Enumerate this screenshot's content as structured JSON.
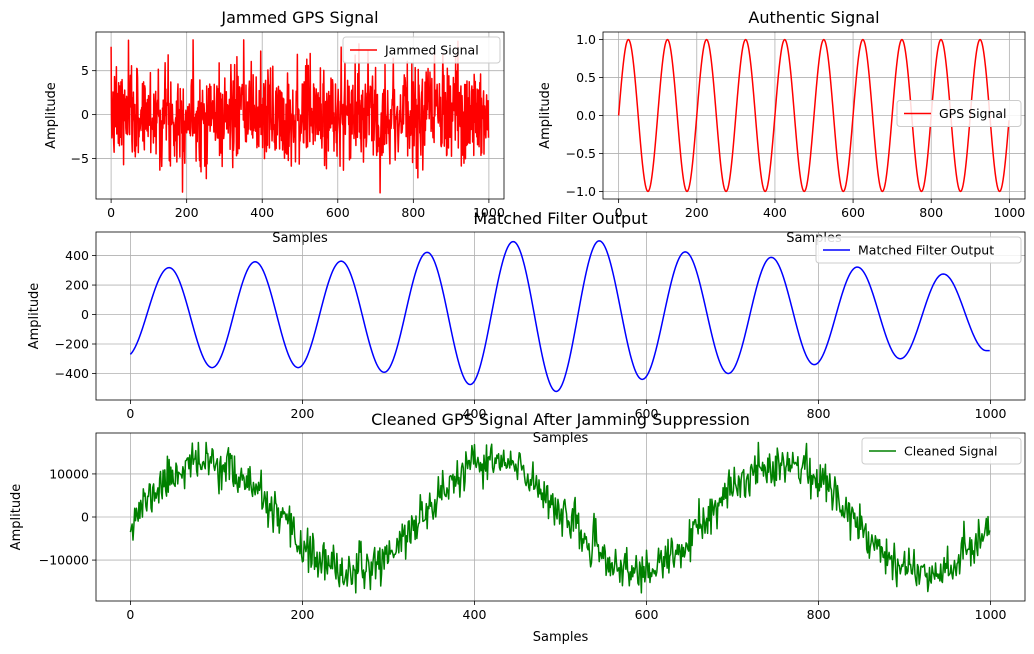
{
  "chart_data": [
    {
      "id": "jammed",
      "type": "line",
      "title": "Jammed GPS Signal",
      "xlabel": "Samples",
      "ylabel": "Amplitude",
      "xlim": [
        -40,
        1040
      ],
      "ylim": [
        -9.6,
        9.4
      ],
      "xticks": [
        0,
        200,
        400,
        600,
        800,
        1000
      ],
      "yticks": [
        -5,
        0,
        5
      ],
      "grid": true,
      "legend_position": "top-right",
      "series": [
        {
          "name": "Jammed Signal",
          "color": "#ff0000",
          "model": "noise",
          "n": 1000,
          "x_range": [
            0,
            999
          ],
          "std": 2.8,
          "seed": 7,
          "approx_min": -8.9,
          "approx_max": 8.5
        }
      ]
    },
    {
      "id": "authentic",
      "type": "line",
      "title": "Authentic Signal",
      "xlabel": "Samples",
      "ylabel": "Amplitude",
      "xlim": [
        -40,
        1040
      ],
      "ylim": [
        -1.1,
        1.1
      ],
      "xticks": [
        0,
        200,
        400,
        600,
        800,
        1000
      ],
      "yticks": [
        -1.0,
        -0.5,
        0.0,
        0.5,
        1.0
      ],
      "ytick_labels": [
        "−1.0",
        "−0.5",
        "0.0",
        "0.5",
        "1.0"
      ],
      "grid": true,
      "legend_position": "center-right",
      "series": [
        {
          "name": "GPS Signal",
          "color": "#ff0000",
          "model": "sine",
          "n": 1000,
          "x_range": [
            0,
            999
          ],
          "amplitude": 1.0,
          "period": 100,
          "phase": 0
        }
      ]
    },
    {
      "id": "matched",
      "type": "line",
      "title": "Matched Filter Output",
      "xlabel": "Samples",
      "ylabel": "Amplitude",
      "xlim": [
        -40,
        1040
      ],
      "ylim": [
        -580,
        560
      ],
      "xticks": [
        0,
        200,
        400,
        600,
        800,
        1000
      ],
      "yticks": [
        -400,
        -200,
        0,
        200,
        400
      ],
      "ytick_labels": [
        "−400",
        "−200",
        "0",
        "200",
        "400"
      ],
      "grid": true,
      "legend_position": "top-right",
      "series": [
        {
          "name": "Matched Filter Output",
          "color": "#0000ff",
          "model": "sine-envelope",
          "n": 1000,
          "x_range": [
            0,
            999
          ],
          "period": 100,
          "peaks": [
            [
              45,
              318
            ],
            [
              145,
              358
            ],
            [
              245,
              362
            ],
            [
              345,
              422
            ],
            [
              445,
              495
            ],
            [
              545,
              500
            ],
            [
              645,
              425
            ],
            [
              745,
              388
            ],
            [
              845,
              322
            ],
            [
              945,
              275
            ]
          ],
          "troughs": [
            [
              -5,
              -285
            ],
            [
              95,
              -360
            ],
            [
              195,
              -360
            ],
            [
              295,
              -392
            ],
            [
              395,
              -475
            ],
            [
              495,
              -522
            ],
            [
              595,
              -440
            ],
            [
              695,
              -400
            ],
            [
              795,
              -340
            ],
            [
              895,
              -300
            ],
            [
              995,
              -245
            ]
          ]
        }
      ]
    },
    {
      "id": "cleaned",
      "type": "line",
      "title": "Cleaned GPS Signal After Jamming Suppression",
      "xlabel": "Samples",
      "ylabel": "Amplitude",
      "xlim": [
        -40,
        1040
      ],
      "ylim": [
        -19500,
        19500
      ],
      "xticks": [
        0,
        200,
        400,
        600,
        800,
        1000
      ],
      "yticks": [
        -10000,
        0,
        10000
      ],
      "ytick_labels": [
        "−10000",
        "0",
        "10000"
      ],
      "grid": true,
      "legend_position": "top-right",
      "series": [
        {
          "name": "Cleaned Signal",
          "color": "#008000",
          "model": "sine-plus-noise",
          "n": 1000,
          "x_range": [
            0,
            999
          ],
          "amplitude": 12800,
          "period": 335,
          "phase_peak_at": 87,
          "noise_std": 2400,
          "seed": 11,
          "approx_min": -17600,
          "approx_max": 17300
        }
      ]
    }
  ]
}
